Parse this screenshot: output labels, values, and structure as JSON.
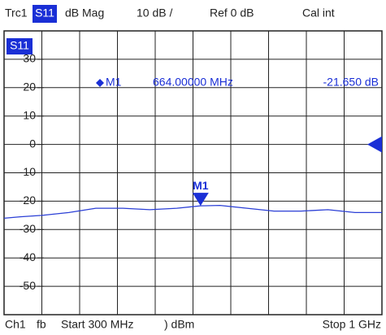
{
  "chart_data": {
    "type": "line",
    "header": {
      "trace": "Trc1",
      "param": "S11",
      "format": "dB Mag",
      "scale": "10 dB /",
      "ref": "Ref 0 dB",
      "cal": "Cal int"
    },
    "trace_label": "S11",
    "ref_level": 0,
    "x": [
      300,
      330,
      370,
      420,
      470,
      520,
      570,
      620,
      664,
      700,
      750,
      800,
      850,
      900,
      950,
      1000
    ],
    "series": [
      {
        "name": "S11",
        "color": "#2b3fd6",
        "values": [
          -26,
          -25.5,
          -25,
          -24,
          -22.5,
          -22.5,
          -23,
          -22.5,
          -21.65,
          -21.5,
          -22.5,
          -23.5,
          -23.5,
          -23,
          -24,
          -24
        ]
      }
    ],
    "xlim": [
      300,
      1000
    ],
    "ylim": [
      -60,
      40
    ],
    "yticks": [
      30,
      20,
      10,
      0,
      -10,
      -20,
      -30,
      -40,
      -50
    ],
    "grid": true,
    "marker": {
      "name": "M1",
      "x": 664,
      "y": -21.65,
      "x_label": "664.00000 MHz",
      "y_label": "-21.650 dB"
    },
    "footer": {
      "channel": "Ch1",
      "mode": "fb",
      "start": "Start 300 MHz",
      "power": ") dBm",
      "stop": "Stop 1 GHz"
    }
  }
}
